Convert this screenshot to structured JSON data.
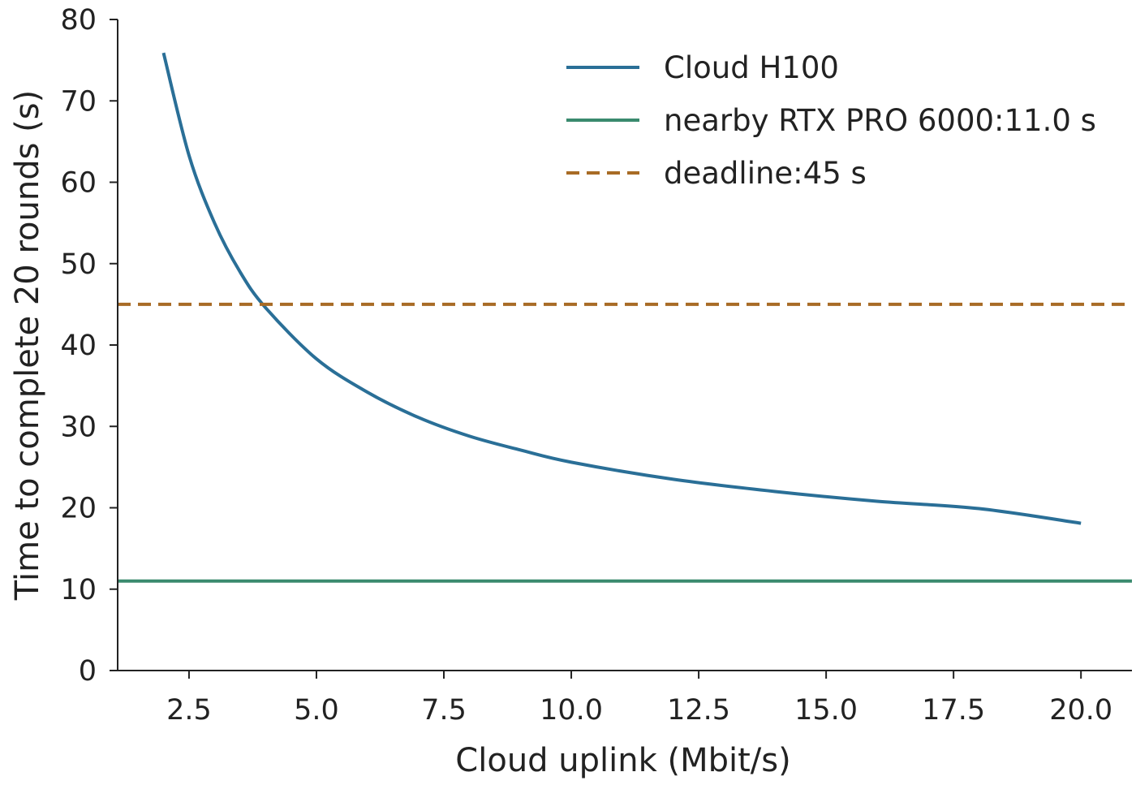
{
  "chart_data": {
    "type": "line",
    "title": "",
    "xlabel": "Cloud uplink (Mbit/s)",
    "ylabel": "Time to complete 20 rounds (s)",
    "xlim": [
      1.1,
      21.0
    ],
    "ylim": [
      0,
      80
    ],
    "xticks": [
      "2.5",
      "5.0",
      "7.5",
      "10.0",
      "12.5",
      "15.0",
      "17.5",
      "20.0"
    ],
    "yticks": [
      "0",
      "10",
      "20",
      "30",
      "40",
      "50",
      "60",
      "70",
      "80"
    ],
    "grid": false,
    "legend_position": "top-right",
    "series": [
      {
        "name": "Cloud H100",
        "color": "#2a6f97",
        "style": "solid",
        "x": [
          2.0,
          2.5,
          3.0,
          3.5,
          4.0,
          5.0,
          6.0,
          7.0,
          8.0,
          9.0,
          10.0,
          12.0,
          14.0,
          16.0,
          18.0,
          20.0
        ],
        "y": [
          75.9,
          63.3,
          55.0,
          49.0,
          44.6,
          38.3,
          34.2,
          31.1,
          28.8,
          27.1,
          25.6,
          23.5,
          22.0,
          20.8,
          19.9,
          18.1
        ]
      },
      {
        "name": "nearby RTX PRO 6000:11.0 s",
        "color": "#3a8a6e",
        "style": "solid",
        "x": [
          1.1,
          21.0
        ],
        "y": [
          11.0,
          11.0
        ]
      },
      {
        "name": "deadline:45 s",
        "color": "#a86b25",
        "style": "dashed",
        "x": [
          1.1,
          21.0
        ],
        "y": [
          45,
          45
        ]
      }
    ]
  }
}
